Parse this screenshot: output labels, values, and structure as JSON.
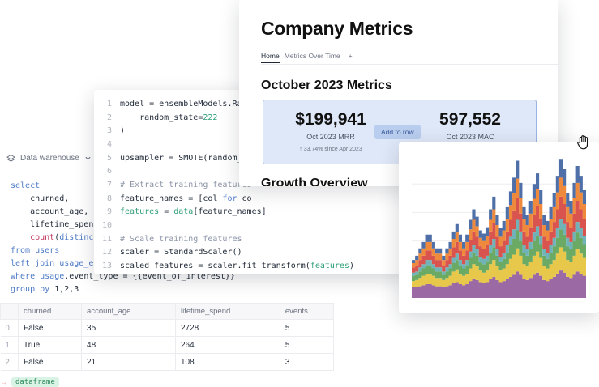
{
  "sql_panel": {
    "source_label": "Data warehouse",
    "query_lines": [
      [
        {
          "t": "select",
          "c": "kw"
        }
      ],
      [
        {
          "t": "    churned,",
          "c": ""
        }
      ],
      [
        {
          "t": "    account_age,",
          "c": ""
        }
      ],
      [
        {
          "t": "    lifetime_spend,",
          "c": ""
        }
      ],
      [
        {
          "t": "    ",
          "c": ""
        },
        {
          "t": "count",
          "c": "fn"
        },
        {
          "t": "(",
          "c": ""
        },
        {
          "t": "distinct",
          "c": "kw"
        }
      ],
      [
        {
          "t": "from",
          "c": "kw"
        },
        {
          "t": " users",
          "c": "kw"
        }
      ],
      [
        {
          "t": "left join",
          "c": "kw"
        },
        {
          "t": " usage_eve",
          "c": "kw"
        }
      ],
      [
        {
          "t": "where",
          "c": "kw"
        },
        {
          "t": " usage",
          "c": "kw"
        },
        {
          "t": ".event_type = {{event_of_interest}}",
          "c": ""
        }
      ],
      [
        {
          "t": "group by",
          "c": "kw"
        },
        {
          "t": " 1,2,3",
          "c": ""
        }
      ]
    ],
    "table": {
      "columns": [
        "churned",
        "account_age",
        "lifetime_spend",
        "events"
      ],
      "rows": [
        {
          "index": "0",
          "cells": [
            "False",
            "35",
            "2728",
            "5"
          ]
        },
        {
          "index": "1",
          "cells": [
            "True",
            "48",
            "264",
            "5"
          ]
        },
        {
          "index": "2",
          "cells": [
            "False",
            "21",
            "108",
            "3"
          ]
        }
      ]
    },
    "output_name": "dataframe",
    "output_arrow": "→"
  },
  "code_panel": {
    "lines": [
      {
        "n": "1",
        "parts": [
          {
            "t": "model = ensembleModels.Rand",
            "c": ""
          }
        ]
      },
      {
        "n": "2",
        "parts": [
          {
            "t": "    random_state=",
            "c": ""
          },
          {
            "t": "222",
            "c": "gr"
          }
        ]
      },
      {
        "n": "3",
        "parts": [
          {
            "t": ")",
            "c": ""
          }
        ]
      },
      {
        "n": "4",
        "parts": []
      },
      {
        "n": "5",
        "parts": [
          {
            "t": "upsampler = SMOTE(random_st",
            "c": ""
          }
        ]
      },
      {
        "n": "6",
        "parts": []
      },
      {
        "n": "7",
        "parts": [
          {
            "t": "# Extract training features",
            "c": "cm"
          }
        ]
      },
      {
        "n": "8",
        "parts": [
          {
            "t": "feature_names = [col ",
            "c": ""
          },
          {
            "t": "for",
            "c": "bl"
          },
          {
            "t": " co",
            "c": ""
          }
        ]
      },
      {
        "n": "9",
        "parts": [
          {
            "t": "features",
            "c": "gr"
          },
          {
            "t": " = ",
            "c": ""
          },
          {
            "t": "data",
            "c": "gr"
          },
          {
            "t": "[feature_names]",
            "c": ""
          }
        ]
      },
      {
        "n": "10",
        "parts": []
      },
      {
        "n": "11",
        "parts": [
          {
            "t": "# Scale training features",
            "c": "cm"
          }
        ]
      },
      {
        "n": "12",
        "parts": [
          {
            "t": "scaler = StandardScaler()",
            "c": ""
          }
        ]
      },
      {
        "n": "13",
        "parts": [
          {
            "t": "scaled_features = scaler.fit_transform(",
            "c": ""
          },
          {
            "t": "features",
            "c": "gr"
          },
          {
            "t": ")",
            "c": ""
          }
        ]
      },
      {
        "n": "14",
        "parts": []
      }
    ]
  },
  "metrics_card": {
    "title": "Company Metrics",
    "tabs": [
      "Home",
      "Metrics Over Time"
    ],
    "add_tab": "+",
    "section_title": "October 2023 Metrics",
    "kpis": [
      {
        "value": "$199,941",
        "label": "Oct 2023 MRR",
        "sub": "↑ 33.74% since Apr 2023"
      },
      {
        "value": "597,552",
        "label": "Oct 2023 MAC",
        "sub": ""
      }
    ],
    "add_to_row_label": "Add to row",
    "growth_title": "Growth Overview"
  },
  "chart_data": {
    "type": "area",
    "stacked": true,
    "step": true,
    "x": [
      1,
      2,
      3,
      4,
      5,
      6,
      7,
      8,
      9,
      10,
      11,
      12,
      13,
      14,
      15,
      16,
      17,
      18,
      19,
      20,
      21,
      22,
      23,
      24,
      25,
      26,
      27,
      28,
      29,
      30,
      31,
      32,
      33,
      34,
      35,
      36,
      37,
      38,
      39,
      40,
      41,
      42,
      43,
      44,
      45,
      46,
      47,
      48,
      49,
      50,
      51,
      52
    ],
    "series": [
      {
        "color": "#9b69a3",
        "values": [
          10,
          10,
          11,
          12,
          13,
          13,
          12,
          11,
          11,
          10,
          11,
          12,
          14,
          15,
          13,
          12,
          13,
          16,
          18,
          17,
          15,
          14,
          15,
          18,
          20,
          17,
          15,
          16,
          18,
          20,
          22,
          25,
          22,
          18,
          17,
          19,
          22,
          24,
          21,
          17,
          16,
          18,
          20,
          23,
          26,
          24,
          20,
          19,
          22,
          25,
          23,
          21
        ]
      },
      {
        "color": "#e8c84a",
        "values": [
          6,
          7,
          8,
          9,
          10,
          10,
          9,
          8,
          8,
          7,
          8,
          9,
          11,
          12,
          10,
          9,
          10,
          12,
          14,
          13,
          11,
          10,
          11,
          14,
          16,
          13,
          11,
          12,
          14,
          17,
          19,
          22,
          18,
          14,
          13,
          15,
          18,
          20,
          17,
          13,
          12,
          14,
          16,
          19,
          22,
          20,
          16,
          15,
          18,
          21,
          19,
          17
        ]
      },
      {
        "color": "#6aaa64",
        "values": [
          5,
          5,
          6,
          7,
          8,
          8,
          7,
          6,
          6,
          5,
          6,
          7,
          8,
          9,
          8,
          7,
          8,
          10,
          11,
          10,
          8,
          8,
          9,
          11,
          12,
          10,
          8,
          9,
          11,
          13,
          15,
          17,
          14,
          11,
          10,
          12,
          14,
          15,
          13,
          10,
          9,
          11,
          13,
          15,
          17,
          16,
          13,
          12,
          14,
          16,
          15,
          13
        ]
      },
      {
        "color": "#6fb3b8",
        "values": [
          3,
          3,
          4,
          4,
          5,
          5,
          4,
          4,
          4,
          3,
          4,
          4,
          5,
          6,
          5,
          4,
          5,
          6,
          7,
          6,
          5,
          5,
          5,
          7,
          8,
          6,
          5,
          6,
          7,
          8,
          9,
          10,
          9,
          7,
          6,
          7,
          8,
          9,
          8,
          6,
          6,
          7,
          8,
          9,
          10,
          10,
          8,
          7,
          9,
          10,
          9,
          8
        ]
      },
      {
        "color": "#d9534f",
        "values": [
          5,
          6,
          7,
          8,
          9,
          9,
          8,
          7,
          7,
          6,
          7,
          8,
          10,
          11,
          9,
          8,
          9,
          11,
          13,
          12,
          10,
          9,
          10,
          13,
          15,
          12,
          10,
          11,
          13,
          16,
          18,
          21,
          17,
          13,
          12,
          14,
          17,
          19,
          16,
          12,
          11,
          13,
          15,
          18,
          21,
          19,
          15,
          14,
          17,
          20,
          18,
          16
        ]
      },
      {
        "color": "#ef8a3c",
        "values": [
          4,
          5,
          6,
          7,
          8,
          8,
          7,
          6,
          6,
          5,
          6,
          7,
          8,
          9,
          8,
          7,
          8,
          10,
          11,
          10,
          8,
          8,
          9,
          11,
          13,
          11,
          9,
          10,
          12,
          14,
          16,
          18,
          15,
          12,
          11,
          13,
          15,
          16,
          14,
          11,
          10,
          12,
          14,
          16,
          18,
          17,
          14,
          13,
          15,
          17,
          16,
          14
        ]
      },
      {
        "color": "#4f6fa8",
        "values": [
          3,
          4,
          5,
          6,
          7,
          7,
          6,
          5,
          5,
          4,
          5,
          6,
          7,
          8,
          7,
          6,
          7,
          9,
          10,
          9,
          7,
          7,
          8,
          10,
          12,
          10,
          8,
          9,
          11,
          13,
          15,
          17,
          14,
          11,
          10,
          12,
          14,
          15,
          13,
          10,
          9,
          11,
          13,
          15,
          17,
          16,
          13,
          12,
          14,
          16,
          15,
          13
        ]
      }
    ],
    "grid": true,
    "ylim": [
      0,
      135
    ]
  }
}
